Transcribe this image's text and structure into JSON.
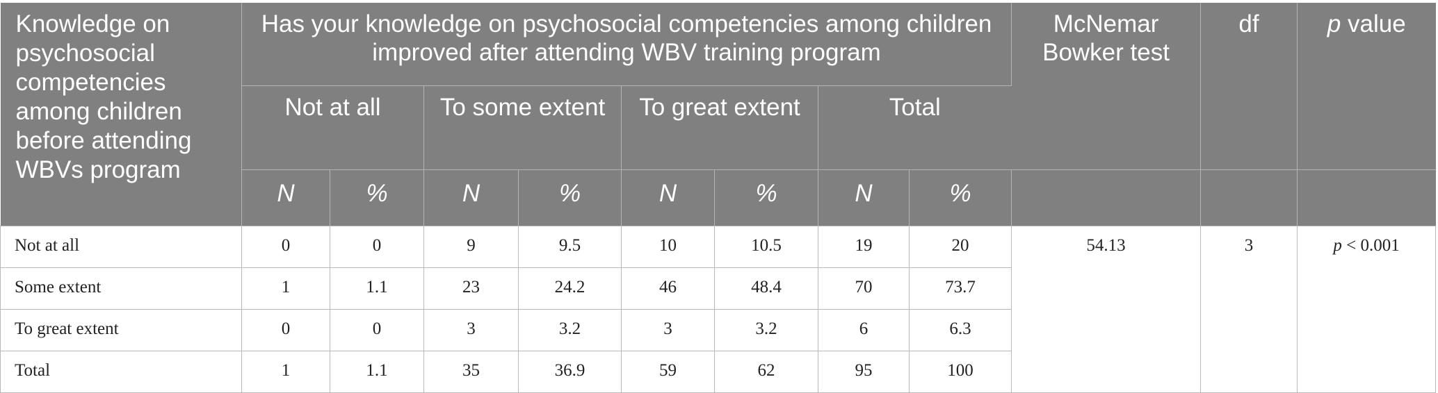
{
  "table": {
    "header": {
      "row_label_header": "Knowledge on psychosocial competencies among children before attending WBVs program",
      "group_header": "Has your knowledge on psychosocial competencies among children improved after attending WBV training program",
      "mcnemar_header": "McNemar Bowker test",
      "df_header": "df",
      "p_header_italic": "p",
      "p_header_rest": " value",
      "sub_groups": [
        "Not at all",
        "To some extent",
        "To great extent",
        "Total"
      ],
      "sub_cols": [
        "N",
        "%",
        "N",
        "%",
        "N",
        "%",
        "N",
        "%"
      ]
    },
    "rows": [
      {
        "label": "Not at all",
        "cells": [
          "0",
          "0",
          "9",
          "9.5",
          "10",
          "10.5",
          "19",
          "20"
        ]
      },
      {
        "label": "Some extent",
        "cells": [
          "1",
          "1.1",
          "23",
          "24.2",
          "46",
          "48.4",
          "70",
          "73.7"
        ]
      },
      {
        "label": "To great extent",
        "cells": [
          "0",
          "0",
          "3",
          "3.2",
          "3",
          "3.2",
          "6",
          "6.3"
        ]
      },
      {
        "label": "Total",
        "cells": [
          "1",
          "1.1",
          "35",
          "36.9",
          "59",
          "62",
          "95",
          "100"
        ]
      }
    ],
    "stats": {
      "mcnemar_value": "54.13",
      "df_value": "3",
      "p_italic": "p",
      "p_rest": " < 0.001"
    }
  }
}
